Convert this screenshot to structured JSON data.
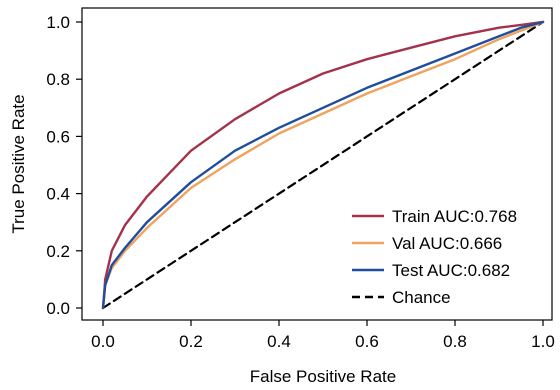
{
  "chart_data": {
    "type": "line",
    "title": "",
    "xlabel": "False Positive Rate",
    "ylabel": "True Positive Rate",
    "xlim": [
      0.0,
      1.0
    ],
    "ylim": [
      0.0,
      1.0
    ],
    "xticks": [
      "0.0",
      "0.2",
      "0.4",
      "0.6",
      "0.8",
      "1.0"
    ],
    "yticks": [
      "0.0",
      "0.2",
      "0.4",
      "0.6",
      "0.8",
      "1.0"
    ],
    "grid": false,
    "legend_position": "bottom-right",
    "series": [
      {
        "name": "Train AUC:0.768",
        "color": "#a3334a",
        "style": "solid",
        "x": [
          0.0,
          0.005,
          0.02,
          0.05,
          0.1,
          0.15,
          0.2,
          0.3,
          0.4,
          0.5,
          0.6,
          0.7,
          0.8,
          0.9,
          0.95,
          1.0
        ],
        "y": [
          0.0,
          0.1,
          0.2,
          0.29,
          0.39,
          0.47,
          0.55,
          0.66,
          0.75,
          0.82,
          0.87,
          0.91,
          0.95,
          0.98,
          0.99,
          1.0
        ]
      },
      {
        "name": "Val AUC:0.666",
        "color": "#f0a35e",
        "style": "solid",
        "x": [
          0.0,
          0.005,
          0.02,
          0.05,
          0.1,
          0.15,
          0.2,
          0.3,
          0.4,
          0.5,
          0.6,
          0.7,
          0.8,
          0.9,
          0.95,
          1.0
        ],
        "y": [
          0.0,
          0.08,
          0.14,
          0.2,
          0.28,
          0.35,
          0.42,
          0.52,
          0.61,
          0.68,
          0.75,
          0.81,
          0.87,
          0.94,
          0.97,
          1.0
        ]
      },
      {
        "name": "Test AUC:0.682",
        "color": "#1f4e9e",
        "style": "solid",
        "x": [
          0.0,
          0.005,
          0.02,
          0.05,
          0.1,
          0.15,
          0.2,
          0.3,
          0.4,
          0.5,
          0.6,
          0.7,
          0.8,
          0.9,
          0.95,
          1.0
        ],
        "y": [
          0.0,
          0.08,
          0.15,
          0.21,
          0.3,
          0.37,
          0.44,
          0.55,
          0.63,
          0.7,
          0.77,
          0.83,
          0.89,
          0.95,
          0.98,
          1.0
        ]
      },
      {
        "name": "Chance",
        "color": "#000000",
        "style": "dashed",
        "x": [
          0.0,
          1.0
        ],
        "y": [
          0.0,
          1.0
        ]
      }
    ]
  }
}
